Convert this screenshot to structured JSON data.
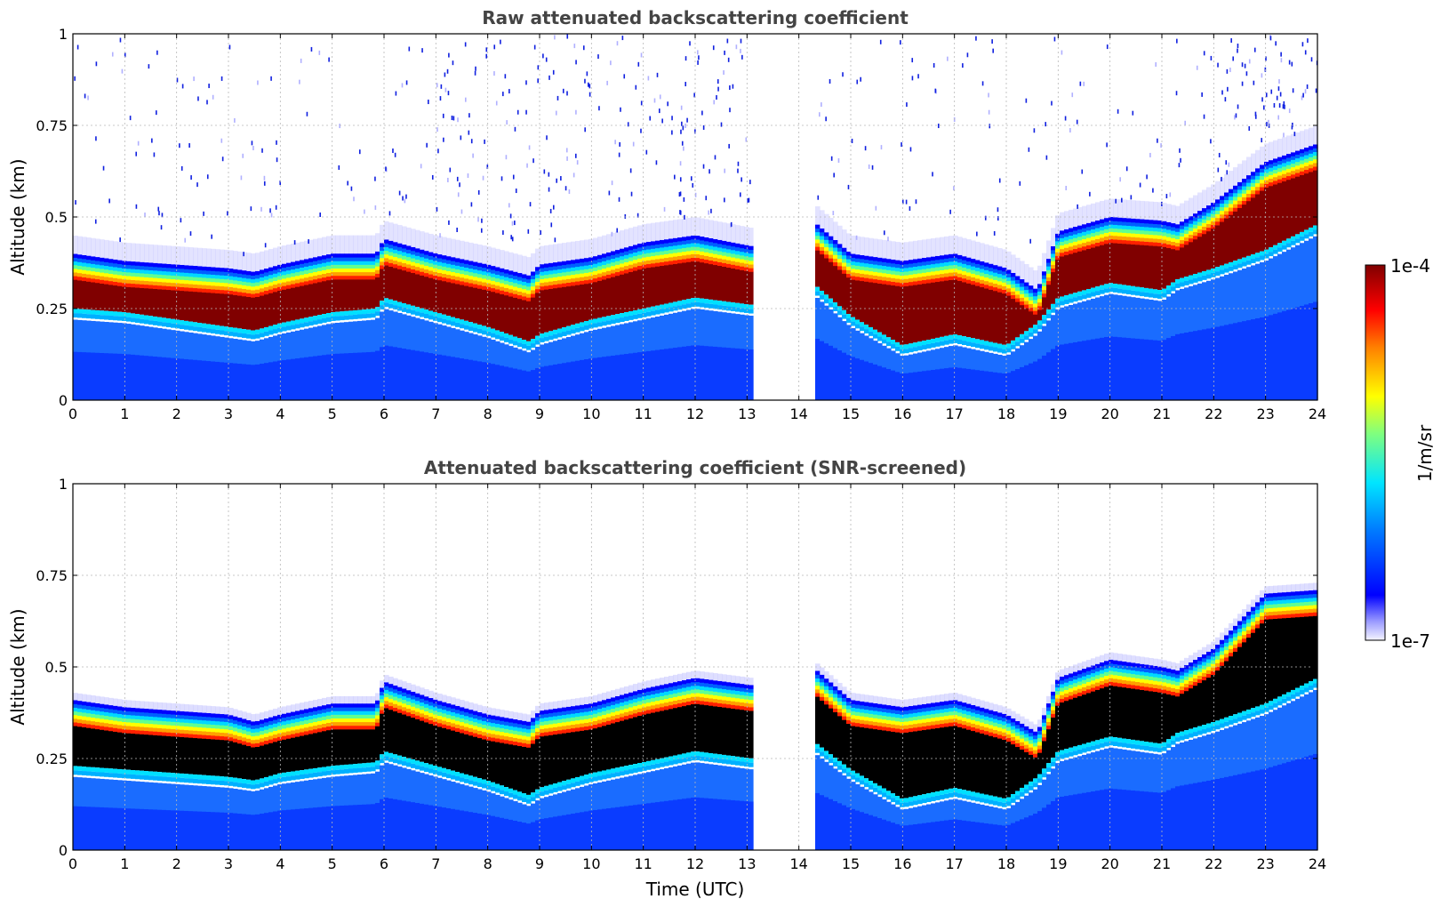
{
  "chart_data": [
    {
      "type": "heatmap",
      "title": "Raw attenuated backscattering coefficient",
      "xlabel": "",
      "ylabel": "Altitude (km)",
      "xlim": [
        0,
        24
      ],
      "ylim": [
        0,
        1
      ],
      "x_ticks": [
        "0",
        "1",
        "2",
        "3",
        "4",
        "5",
        "6",
        "7",
        "8",
        "9",
        "10",
        "11",
        "12",
        "13",
        "14",
        "15",
        "16",
        "17",
        "18",
        "19",
        "20",
        "21",
        "22",
        "23",
        "24"
      ],
      "y_ticks": [
        "0",
        "0.25",
        "0.5",
        "0.75",
        "1"
      ],
      "grid": true,
      "data_gap_utc": [
        13.1,
        14.35
      ],
      "layer": {
        "time_utc": [
          0,
          1,
          2,
          3,
          3.5,
          4,
          5,
          5.85,
          6,
          7,
          8,
          8.8,
          9,
          10,
          11,
          12,
          13.1,
          14.35,
          15,
          16,
          17,
          18,
          18.6,
          19,
          20,
          21,
          21.3,
          22,
          23,
          24
        ],
        "base_km": [
          0.22,
          0.21,
          0.19,
          0.17,
          0.16,
          0.18,
          0.21,
          0.22,
          0.25,
          0.21,
          0.17,
          0.13,
          0.15,
          0.19,
          0.22,
          0.25,
          0.23,
          0.28,
          0.2,
          0.12,
          0.15,
          0.12,
          0.18,
          0.25,
          0.29,
          0.27,
          0.3,
          0.33,
          0.38,
          0.45
        ],
        "top_km": [
          0.4,
          0.38,
          0.37,
          0.36,
          0.35,
          0.37,
          0.4,
          0.4,
          0.44,
          0.4,
          0.37,
          0.34,
          0.37,
          0.39,
          0.43,
          0.45,
          0.42,
          0.48,
          0.4,
          0.38,
          0.4,
          0.36,
          0.3,
          0.46,
          0.5,
          0.49,
          0.48,
          0.54,
          0.65,
          0.7
        ]
      }
    },
    {
      "type": "heatmap",
      "title": "Attenuated backscattering coefficient (SNR-screened)",
      "xlabel": "Time (UTC)",
      "ylabel": "Altitude (km)",
      "xlim": [
        0,
        24
      ],
      "ylim": [
        0,
        1
      ],
      "x_ticks": [
        "0",
        "1",
        "2",
        "3",
        "4",
        "5",
        "6",
        "7",
        "8",
        "9",
        "10",
        "11",
        "12",
        "13",
        "14",
        "15",
        "16",
        "17",
        "18",
        "19",
        "20",
        "21",
        "22",
        "23",
        "24"
      ],
      "y_ticks": [
        "0",
        "0.25",
        "0.5",
        "0.75",
        "1"
      ],
      "grid": true,
      "data_gap_utc": [
        13.1,
        14.35
      ],
      "layer": {
        "time_utc": [
          0,
          1,
          2,
          3,
          3.5,
          4,
          5,
          5.85,
          6,
          7,
          8,
          8.8,
          9,
          10,
          11,
          12,
          13.1,
          14.35,
          15,
          16,
          17,
          18,
          18.6,
          19,
          20,
          21,
          21.3,
          22,
          23,
          24
        ],
        "base_km": [
          0.2,
          0.19,
          0.18,
          0.17,
          0.16,
          0.18,
          0.2,
          0.21,
          0.24,
          0.2,
          0.16,
          0.12,
          0.14,
          0.18,
          0.21,
          0.24,
          0.22,
          0.26,
          0.19,
          0.11,
          0.14,
          0.11,
          0.17,
          0.24,
          0.28,
          0.26,
          0.29,
          0.32,
          0.37,
          0.44
        ],
        "top_km": [
          0.41,
          0.39,
          0.38,
          0.37,
          0.35,
          0.37,
          0.4,
          0.4,
          0.46,
          0.41,
          0.37,
          0.35,
          0.38,
          0.4,
          0.44,
          0.47,
          0.45,
          0.49,
          0.41,
          0.39,
          0.41,
          0.37,
          0.32,
          0.47,
          0.52,
          0.5,
          0.49,
          0.55,
          0.7,
          0.71
        ]
      },
      "saturated_core_color": "#000000"
    }
  ],
  "colorbar": {
    "label": "1/m/sr",
    "max_label": "1e-4",
    "min_label": "1e-7",
    "scale": "log",
    "colormap": "jet"
  }
}
